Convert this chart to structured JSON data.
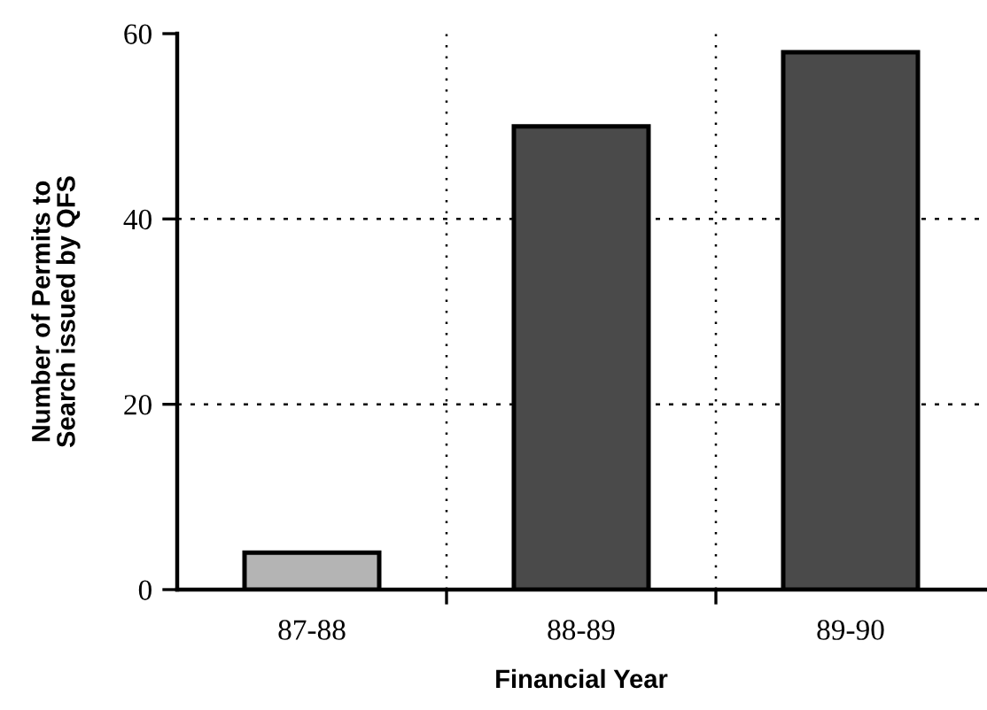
{
  "chart_data": {
    "type": "bar",
    "categories": [
      "87-88",
      "88-89",
      "89-90"
    ],
    "values": [
      4,
      50,
      58
    ],
    "colors": [
      "#b4b4b4",
      "#4a4a4a",
      "#4a4a4a"
    ],
    "xlabel": "Financial Year",
    "ylabel": "Number of Permits to\nSearch issued by QFS",
    "ylim": [
      0,
      60
    ],
    "yticks": [
      0,
      20,
      40,
      60
    ],
    "grid": true
  }
}
